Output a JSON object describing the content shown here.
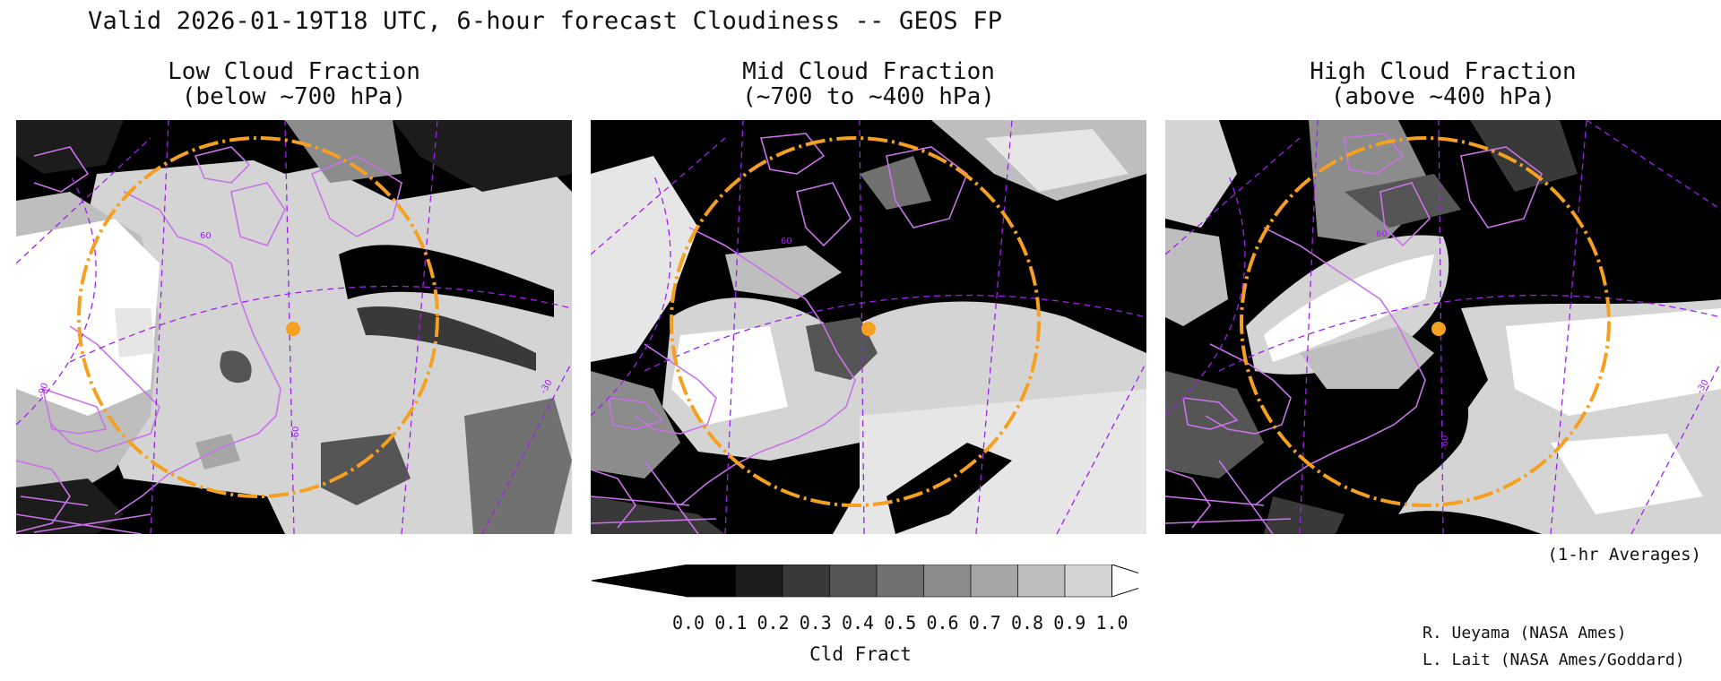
{
  "title": "Valid 2026-01-19T18 UTC, 6-hour forecast Cloudiness -- GEOS FP",
  "panels": [
    {
      "id": "low",
      "title_line1": "Low Cloud Fraction",
      "title_line2": "(below ~700 hPa)"
    },
    {
      "id": "mid",
      "title_line1": "Mid Cloud Fraction",
      "title_line2": "(~700 to ~400 hPa)"
    },
    {
      "id": "high",
      "title_line1": "High Cloud Fraction",
      "title_line2": "(above ~400 hPa)"
    }
  ],
  "map_labels": {
    "lat_label": "60",
    "lon_label_left": "-90",
    "lon_label_center": "-60",
    "lon_label_right": "-30"
  },
  "colors": {
    "coastline": "#c873e8",
    "graticule": "#a020f0",
    "range_ring": "#f5a020",
    "marker": "#f5a020"
  },
  "colorbar": {
    "label": "Cld Fract",
    "ticks": [
      "0.0",
      "0.1",
      "0.2",
      "0.3",
      "0.4",
      "0.5",
      "0.6",
      "0.7",
      "0.8",
      "0.9",
      "1.0"
    ],
    "shades": [
      "#000000",
      "#1c1c1c",
      "#393939",
      "#555555",
      "#717171",
      "#8c8c8c",
      "#a6a6a6",
      "#bebebe",
      "#d4d4d4",
      "#e6e6e6",
      "#ffffff"
    ]
  },
  "note": "(1-hr Averages)",
  "credits": [
    "R. Ueyama (NASA Ames)",
    "L. Lait (NASA Ames/Goddard)"
  ]
}
